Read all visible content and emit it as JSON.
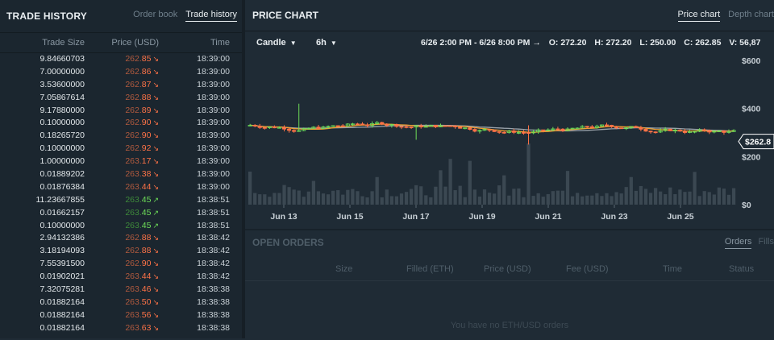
{
  "trade_history": {
    "title": "TRADE HISTORY",
    "tabs": [
      {
        "label": "Order book",
        "active": false
      },
      {
        "label": "Trade history",
        "active": true
      }
    ],
    "columns": {
      "size": "Trade Size",
      "price": "Price (USD)",
      "time": "Time"
    },
    "rows": [
      {
        "size": "9.84660703",
        "price_prefix": "262.",
        "price_suffix": "85",
        "dir": "down",
        "time": "18:39:00"
      },
      {
        "size": "7.00000000",
        "price_prefix": "262.",
        "price_suffix": "86",
        "dir": "down",
        "time": "18:39:00"
      },
      {
        "size": "3.53600000",
        "price_prefix": "262.",
        "price_suffix": "87",
        "dir": "down",
        "time": "18:39:00"
      },
      {
        "size": "7.05867614",
        "price_prefix": "262.",
        "price_suffix": "88",
        "dir": "down",
        "time": "18:39:00"
      },
      {
        "size": "9.17880000",
        "price_prefix": "262.",
        "price_suffix": "89",
        "dir": "down",
        "time": "18:39:00"
      },
      {
        "size": "0.10000000",
        "price_prefix": "262.",
        "price_suffix": "90",
        "dir": "down",
        "time": "18:39:00"
      },
      {
        "size": "0.18265720",
        "price_prefix": "262.",
        "price_suffix": "90",
        "dir": "down",
        "time": "18:39:00"
      },
      {
        "size": "0.10000000",
        "price_prefix": "262.",
        "price_suffix": "92",
        "dir": "down",
        "time": "18:39:00"
      },
      {
        "size": "1.00000000",
        "price_prefix": "263.",
        "price_suffix": "17",
        "dir": "down",
        "time": "18:39:00"
      },
      {
        "size": "0.01889202",
        "price_prefix": "263.",
        "price_suffix": "38",
        "dir": "down",
        "time": "18:39:00"
      },
      {
        "size": "0.01876384",
        "price_prefix": "263.",
        "price_suffix": "44",
        "dir": "down",
        "time": "18:39:00"
      },
      {
        "size": "11.23667855",
        "price_prefix": "263.",
        "price_suffix": "45",
        "dir": "up",
        "time": "18:38:51"
      },
      {
        "size": "0.01662157",
        "price_prefix": "263.",
        "price_suffix": "45",
        "dir": "up",
        "time": "18:38:51"
      },
      {
        "size": "0.10000000",
        "price_prefix": "263.",
        "price_suffix": "45",
        "dir": "up",
        "time": "18:38:51"
      },
      {
        "size": "2.94132386",
        "price_prefix": "262.",
        "price_suffix": "88",
        "dir": "down",
        "time": "18:38:42"
      },
      {
        "size": "3.18194093",
        "price_prefix": "262.",
        "price_suffix": "88",
        "dir": "down",
        "time": "18:38:42"
      },
      {
        "size": "7.55391500",
        "price_prefix": "262.",
        "price_suffix": "90",
        "dir": "down",
        "time": "18:38:42"
      },
      {
        "size": "0.01902021",
        "price_prefix": "263.",
        "price_suffix": "44",
        "dir": "down",
        "time": "18:38:42"
      },
      {
        "size": "7.32075281",
        "price_prefix": "263.",
        "price_suffix": "46",
        "dir": "down",
        "time": "18:38:38"
      },
      {
        "size": "0.01882164",
        "price_prefix": "263.",
        "price_suffix": "50",
        "dir": "down",
        "time": "18:38:38"
      },
      {
        "size": "0.01882164",
        "price_prefix": "263.",
        "price_suffix": "56",
        "dir": "down",
        "time": "18:38:38"
      },
      {
        "size": "0.01882164",
        "price_prefix": "263.",
        "price_suffix": "63",
        "dir": "down",
        "time": "18:38:38"
      }
    ]
  },
  "price_chart": {
    "title": "PRICE CHART",
    "tabs": [
      {
        "label": "Price chart",
        "active": true
      },
      {
        "label": "Depth chart",
        "active": false
      }
    ],
    "chart_type_select": "Candle",
    "interval_select": "6h",
    "range": "6/26 2:00 PM - 6/26 8:00 PM →",
    "ohlc": {
      "o": "O: 272.20",
      "h": "H: 272.20",
      "l": "L: 250.00",
      "c": "C: 262.85",
      "v": "V: 56,87"
    },
    "last_price_label": "$262.8",
    "colors": {
      "up": "#6ede58",
      "down": "#ff7347",
      "ma_fast": "#f0a030",
      "ma_slow": "#9aa3ab",
      "volume": "#3b4852",
      "price_tag": "#ffffff"
    }
  },
  "chart_data": {
    "type": "candlestick",
    "y_ticks": [
      "$600",
      "$400",
      "$200",
      "$0"
    ],
    "ylim": [
      0,
      600
    ],
    "x_ticks": [
      "Jun 13",
      "Jun 15",
      "Jun 17",
      "Jun 19",
      "Jun 21",
      "Jun 23",
      "Jun 25"
    ],
    "last_price": 262.85
  },
  "open_orders": {
    "title": "OPEN ORDERS",
    "tabs": [
      {
        "label": "Orders",
        "active": true
      },
      {
        "label": "Fills",
        "active": false
      }
    ],
    "columns": [
      "Size",
      "Filled (ETH)",
      "Price (USD)",
      "Fee (USD)",
      "Time",
      "Status"
    ],
    "empty_message": "You have no ETH/USD orders"
  }
}
